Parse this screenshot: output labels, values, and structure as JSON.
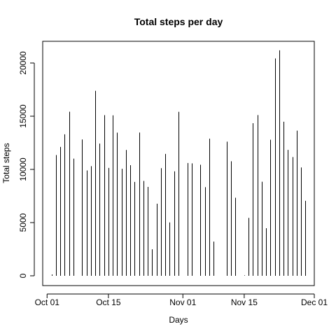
{
  "chart_data": {
    "type": "bar",
    "title": "Total steps per day",
    "xlabel": "Days",
    "ylabel": "Total steps",
    "x_tick_labels": [
      "Oct 01",
      "Oct 15",
      "Nov 01",
      "Nov 15",
      "Dec 01"
    ],
    "x_tick_dates": [
      "2012-10-01",
      "2012-10-15",
      "2012-11-01",
      "2012-11-15",
      "2012-12-01"
    ],
    "y_ticks": [
      0,
      5000,
      10000,
      15000,
      20000
    ],
    "y_tick_labels": [
      "0",
      "5000",
      "10000",
      "15000",
      "20000"
    ],
    "xlim": [
      "2012-09-30",
      "2012-12-01"
    ],
    "ylim": [
      0,
      21500
    ],
    "bar_style": "vertical-lines",
    "bar_color": "#000000",
    "grid": false,
    "x": [
      "2012-10-02",
      "2012-10-03",
      "2012-10-04",
      "2012-10-05",
      "2012-10-06",
      "2012-10-07",
      "2012-10-09",
      "2012-10-10",
      "2012-10-11",
      "2012-10-12",
      "2012-10-13",
      "2012-10-14",
      "2012-10-15",
      "2012-10-16",
      "2012-10-17",
      "2012-10-18",
      "2012-10-19",
      "2012-10-20",
      "2012-10-21",
      "2012-10-22",
      "2012-10-23",
      "2012-10-24",
      "2012-10-25",
      "2012-10-26",
      "2012-10-27",
      "2012-10-28",
      "2012-10-29",
      "2012-10-30",
      "2012-10-31",
      "2012-11-02",
      "2012-11-03",
      "2012-11-05",
      "2012-11-06",
      "2012-11-07",
      "2012-11-08",
      "2012-11-11",
      "2012-11-12",
      "2012-11-13",
      "2012-11-15",
      "2012-11-16",
      "2012-11-17",
      "2012-11-18",
      "2012-11-19",
      "2012-11-20",
      "2012-11-21",
      "2012-11-22",
      "2012-11-23",
      "2012-11-24",
      "2012-11-25",
      "2012-11-26",
      "2012-11-27",
      "2012-11-28",
      "2012-11-29"
    ],
    "values": [
      126,
      11352,
      12116,
      13294,
      15420,
      11015,
      12811,
      9900,
      10304,
      17382,
      12426,
      15098,
      10139,
      15084,
      13452,
      10056,
      11829,
      10395,
      8821,
      13460,
      8918,
      8355,
      2492,
      6778,
      10119,
      11458,
      5018,
      9819,
      15414,
      10600,
      10571,
      10439,
      8334,
      12883,
      3219,
      12608,
      10765,
      7336,
      41,
      5441,
      14339,
      15110,
      8841,
      4472,
      12787,
      20427,
      21194,
      14478,
      11834,
      11162,
      13646,
      10183,
      7047
    ]
  }
}
